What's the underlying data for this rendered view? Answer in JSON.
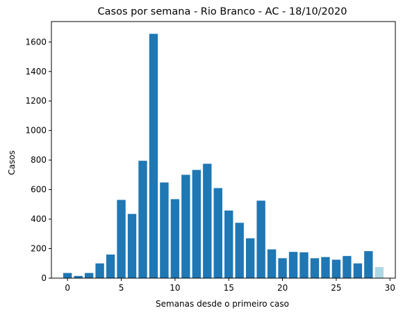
{
  "chart_data": {
    "type": "bar",
    "title": "Casos por semana - Rio Branco - AC - 18/10/2020",
    "xlabel": "Semanas desde o primeiro caso",
    "ylabel": "Casos",
    "x": [
      0,
      1,
      2,
      3,
      4,
      5,
      6,
      7,
      8,
      9,
      10,
      11,
      12,
      13,
      14,
      15,
      16,
      17,
      18,
      19,
      20,
      21,
      22,
      23,
      24,
      25,
      26,
      27,
      28,
      29
    ],
    "values": [
      35,
      15,
      35,
      100,
      160,
      530,
      435,
      795,
      1655,
      648,
      535,
      700,
      733,
      775,
      610,
      458,
      375,
      270,
      525,
      195,
      135,
      178,
      175,
      135,
      143,
      125,
      150,
      100,
      183,
      75
    ],
    "bar_colors": [
      "#1f77b4",
      "#1f77b4",
      "#1f77b4",
      "#1f77b4",
      "#1f77b4",
      "#1f77b4",
      "#1f77b4",
      "#1f77b4",
      "#1f77b4",
      "#1f77b4",
      "#1f77b4",
      "#1f77b4",
      "#1f77b4",
      "#1f77b4",
      "#1f77b4",
      "#1f77b4",
      "#1f77b4",
      "#1f77b4",
      "#1f77b4",
      "#1f77b4",
      "#1f77b4",
      "#1f77b4",
      "#1f77b4",
      "#1f77b4",
      "#1f77b4",
      "#1f77b4",
      "#1f77b4",
      "#1f77b4",
      "#1f77b4",
      "#add8e6"
    ],
    "xlim": [
      -1.5,
      30.5
    ],
    "ylim": [
      0,
      1738
    ],
    "xticks": [
      0,
      5,
      10,
      15,
      20,
      25,
      30
    ],
    "yticks": [
      0,
      200,
      400,
      600,
      800,
      1000,
      1200,
      1400,
      1600
    ],
    "grid": false
  }
}
